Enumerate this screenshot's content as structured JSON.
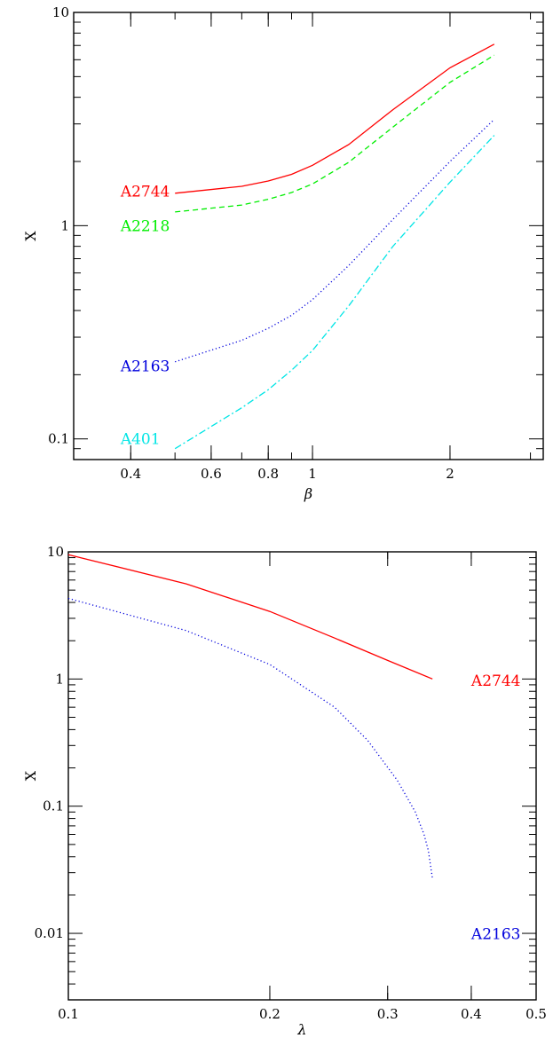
{
  "chart_data": [
    {
      "type": "line",
      "xlabel": "β",
      "ylabel": "X",
      "xscale": "log",
      "yscale": "log",
      "xlim": [
        0.3,
        3.2
      ],
      "ylim": [
        0.08,
        10
      ],
      "xticks": [
        {
          "v": 0.4,
          "label": "0.4"
        },
        {
          "v": 0.6,
          "label": "0.6"
        },
        {
          "v": 0.8,
          "label": "0.8"
        },
        {
          "v": 1,
          "label": "1"
        },
        {
          "v": 2,
          "label": "2"
        }
      ],
      "yticks": [
        {
          "v": 0.1,
          "label": "0.1"
        },
        {
          "v": 1,
          "label": "1"
        },
        {
          "v": 10,
          "label": "10"
        }
      ],
      "series": [
        {
          "name": "A2744",
          "color": "#ff0000",
          "dash": "",
          "x": [
            0.5,
            0.7,
            0.8,
            0.9,
            1.0,
            1.2,
            1.5,
            2.0,
            2.5
          ],
          "y": [
            1.42,
            1.53,
            1.62,
            1.74,
            1.92,
            2.4,
            3.5,
            5.5,
            7.1
          ]
        },
        {
          "name": "A2218",
          "color": "#00ee00",
          "dash": "6,4",
          "x": [
            0.5,
            0.7,
            0.8,
            0.9,
            1.0,
            1.2,
            1.5,
            2.0,
            2.5
          ],
          "y": [
            1.16,
            1.25,
            1.33,
            1.43,
            1.57,
            1.98,
            2.9,
            4.7,
            6.3
          ]
        },
        {
          "name": "A2163",
          "color": "#0000dd",
          "dash": "1.2,2.8",
          "x": [
            0.5,
            0.7,
            0.8,
            0.9,
            1.0,
            1.2,
            1.5,
            2.0,
            2.5
          ],
          "y": [
            0.23,
            0.29,
            0.33,
            0.38,
            0.45,
            0.65,
            1.07,
            2.0,
            3.15
          ]
        },
        {
          "name": "A401",
          "color": "#00e5e5",
          "dash": "8,3,2,3",
          "x": [
            0.5,
            0.7,
            0.8,
            0.9,
            1.0,
            1.2,
            1.5,
            2.0,
            2.5
          ],
          "y": [
            0.09,
            0.14,
            0.17,
            0.21,
            0.26,
            0.42,
            0.8,
            1.6,
            2.65
          ]
        }
      ],
      "labels": [
        {
          "text": "A2744",
          "x": 0.38,
          "y": 1.45,
          "color": "#ff0000"
        },
        {
          "text": "A2218",
          "x": 0.38,
          "y": 1.0,
          "color": "#00ee00"
        },
        {
          "text": "A2163",
          "x": 0.38,
          "y": 0.22,
          "color": "#0000dd"
        },
        {
          "text": "A401",
          "x": 0.38,
          "y": 0.1,
          "color": "#00e5e5"
        }
      ]
    },
    {
      "type": "line",
      "xlabel": "λ",
      "ylabel": "X",
      "xscale": "log",
      "yscale": "log",
      "xlim": [
        0.1,
        0.5
      ],
      "ylim": [
        0.003,
        10
      ],
      "xticks": [
        {
          "v": 0.1,
          "label": "0.1"
        },
        {
          "v": 0.2,
          "label": "0.2"
        },
        {
          "v": 0.3,
          "label": "0.3"
        },
        {
          "v": 0.4,
          "label": "0.4"
        },
        {
          "v": 0.5,
          "label": "0.5"
        }
      ],
      "yticks": [
        {
          "v": 0.01,
          "label": "0.01"
        },
        {
          "v": 0.1,
          "label": "0.1"
        },
        {
          "v": 1,
          "label": "1"
        },
        {
          "v": 10,
          "label": "10"
        }
      ],
      "series": [
        {
          "name": "A2744",
          "color": "#ff0000",
          "dash": "",
          "x": [
            0.1,
            0.15,
            0.2,
            0.25,
            0.3,
            0.35
          ],
          "y": [
            9.5,
            5.6,
            3.4,
            2.1,
            1.4,
            1.0
          ]
        },
        {
          "name": "A2163",
          "color": "#0000dd",
          "dash": "1.2,2.8",
          "x": [
            0.1,
            0.15,
            0.2,
            0.25,
            0.28,
            0.31,
            0.33,
            0.34,
            0.345,
            0.35
          ],
          "y": [
            4.3,
            2.4,
            1.3,
            0.6,
            0.33,
            0.16,
            0.09,
            0.06,
            0.045,
            0.027
          ]
        }
      ],
      "labels": [
        {
          "text": "A2744",
          "x": 0.4,
          "y": 0.97,
          "color": "#ff0000"
        },
        {
          "text": "A2163",
          "x": 0.4,
          "y": 0.0099,
          "color": "#0000dd"
        }
      ]
    }
  ]
}
